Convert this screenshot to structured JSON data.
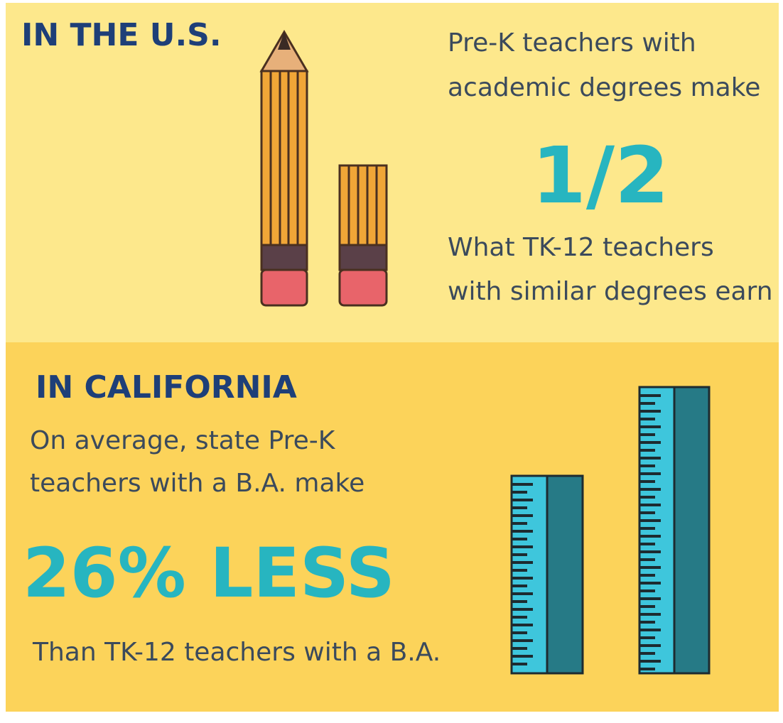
{
  "us": {
    "heading": "IN THE U.S.",
    "intro_lines": [
      "Pre-K teachers with",
      "academic degrees make"
    ],
    "figure": "1/2",
    "outro_lines": [
      "What TK-12 teachers",
      "with similar degrees earn"
    ]
  },
  "california": {
    "heading": "IN CALIFORNIA",
    "intro_lines": [
      "On average, state Pre-K",
      "teachers with a B.A. make"
    ],
    "figure": "26% LESS",
    "outro": "Than TK-12 teachers with a B.A."
  }
}
